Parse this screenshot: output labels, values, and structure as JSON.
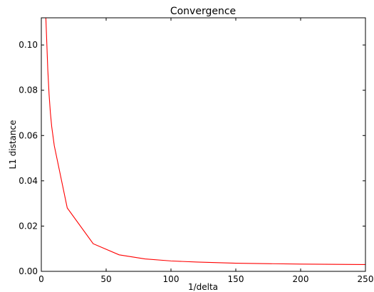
{
  "chart_data": {
    "type": "line",
    "title": "Convergence",
    "xlabel": "1/delta",
    "ylabel": "L1 distance",
    "xlim": [
      0,
      250
    ],
    "ylim": [
      0,
      0.112
    ],
    "xticks": [
      0,
      50,
      100,
      150,
      200,
      250
    ],
    "xtick_labels": [
      "0",
      "50",
      "100",
      "150",
      "200",
      "250"
    ],
    "yticks": [
      0,
      0.02,
      0.04,
      0.06,
      0.08,
      0.1
    ],
    "ytick_labels": [
      "0.00",
      "0.02",
      "0.04",
      "0.06",
      "0.08",
      "0.10"
    ],
    "grid": false,
    "series": [
      {
        "color": "#ff0000",
        "x": [
          3.5,
          5,
          6,
          7,
          8,
          10,
          20,
          40,
          60,
          80,
          100,
          120,
          150,
          200,
          250
        ],
        "y": [
          0.112,
          0.089,
          0.078,
          0.07,
          0.064,
          0.0555,
          0.028,
          0.0122,
          0.0073,
          0.0055,
          0.0046,
          0.0041,
          0.0036,
          0.0032,
          0.003
        ]
      }
    ]
  }
}
